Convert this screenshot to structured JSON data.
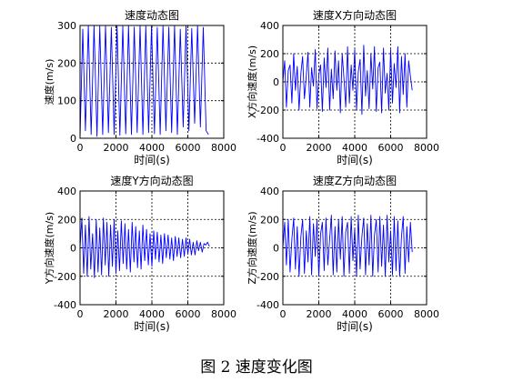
{
  "caption": "图 2  速度变化图",
  "chart_data": [
    {
      "type": "line",
      "title": "速度动态图",
      "xlabel": "时间(s)",
      "ylabel": "速度(m/s)",
      "xlim": [
        0,
        8000
      ],
      "ylim": [
        0,
        300
      ],
      "xticks": [
        0,
        2000,
        4000,
        6000,
        8000
      ],
      "yticks": [
        0,
        100,
        200,
        300
      ],
      "grid": true,
      "line_color": "#0000ff",
      "series": [
        {
          "x": [
            0,
            150,
            300,
            460,
            620,
            780,
            940,
            1100,
            1260,
            1420,
            1580,
            1740,
            1900,
            2060,
            2220,
            2380,
            2540,
            2700,
            2860,
            3020,
            3180,
            3340,
            3500,
            3660,
            3820,
            3980,
            4140,
            4300,
            4460,
            4620,
            4780,
            4940,
            5100,
            5260,
            5420,
            5580,
            5740,
            5900,
            6060,
            6220,
            6380,
            6540,
            6700,
            6860,
            7020,
            7150
          ],
          "y": [
            0,
            290,
            20,
            300,
            10,
            300,
            5,
            298,
            10,
            300,
            15,
            295,
            10,
            300,
            8,
            298,
            12,
            300,
            10,
            296,
            15,
            300,
            10,
            298,
            15,
            300,
            12,
            295,
            10,
            300,
            20,
            296,
            15,
            300,
            10,
            290,
            30,
            300,
            20,
            292,
            40,
            300,
            30,
            295,
            20,
            10
          ]
        }
      ]
    },
    {
      "type": "line",
      "title": "速度X方向动态图",
      "xlabel": "时间(s)",
      "ylabel": "X方向速度(m/s)",
      "xlim": [
        0,
        8000
      ],
      "ylim": [
        -400,
        400
      ],
      "xticks": [
        0,
        2000,
        4000,
        6000,
        8000
      ],
      "yticks": [
        -400,
        -200,
        0,
        200,
        400
      ],
      "grid": true,
      "line_color": "#0000ff",
      "series": [
        {
          "x": [
            0,
            100,
            200,
            300,
            400,
            500,
            600,
            700,
            800,
            900,
            1000,
            1100,
            1200,
            1300,
            1400,
            1500,
            1600,
            1700,
            1800,
            1900,
            2000,
            2100,
            2200,
            2300,
            2400,
            2500,
            2600,
            2700,
            2800,
            2900,
            3000,
            3100,
            3200,
            3300,
            3400,
            3500,
            3600,
            3700,
            3800,
            3900,
            4000,
            4100,
            4200,
            4300,
            4400,
            4500,
            4600,
            4700,
            4800,
            4900,
            5000,
            5100,
            5200,
            5300,
            5400,
            5500,
            5600,
            5700,
            5800,
            5900,
            6000,
            6100,
            6200,
            6300,
            6400,
            6500,
            6600,
            6700,
            6800,
            6900,
            7000,
            7100,
            7200
          ],
          "y": [
            0,
            150,
            -180,
            80,
            120,
            -150,
            200,
            -60,
            110,
            -200,
            60,
            180,
            -120,
            40,
            210,
            -180,
            100,
            -30,
            230,
            -190,
            50,
            120,
            -210,
            170,
            -40,
            240,
            -200,
            90,
            -120,
            220,
            -60,
            150,
            -220,
            200,
            30,
            -180,
            250,
            -150,
            120,
            -60,
            230,
            -200,
            70,
            160,
            -230,
            260,
            -100,
            80,
            -190,
            200,
            -50,
            250,
            -210,
            100,
            140,
            -220,
            240,
            -80,
            60,
            -200,
            230,
            -150,
            130,
            -40,
            250,
            -220,
            180,
            -90,
            200,
            -180,
            150,
            40,
            -60
          ]
        }
      ]
    },
    {
      "type": "line",
      "title": "速度Y方向动态图",
      "xlabel": "时间(s)",
      "ylabel": "Y方向速度(m/s)",
      "xlim": [
        0,
        8000
      ],
      "ylim": [
        -400,
        400
      ],
      "xticks": [
        0,
        2000,
        4000,
        6000,
        8000
      ],
      "yticks": [
        -400,
        -200,
        0,
        200,
        400
      ],
      "grid": true,
      "line_color": "#0000ff",
      "series": [
        {
          "x": [
            0,
            100,
            200,
            300,
            400,
            500,
            600,
            700,
            800,
            900,
            1000,
            1100,
            1200,
            1300,
            1400,
            1500,
            1600,
            1700,
            1800,
            1900,
            2000,
            2100,
            2200,
            2300,
            2400,
            2500,
            2600,
            2700,
            2800,
            2900,
            3000,
            3100,
            3200,
            3300,
            3400,
            3500,
            3600,
            3700,
            3800,
            3900,
            4000,
            4100,
            4200,
            4300,
            4400,
            4500,
            4600,
            4700,
            4800,
            4900,
            5000,
            5100,
            5200,
            5300,
            5400,
            5500,
            5600,
            5700,
            5800,
            5900,
            6000,
            6100,
            6200,
            6300,
            6400,
            6500,
            6600,
            6700,
            6800,
            6900,
            7000,
            7100,
            7200
          ],
          "y": [
            0,
            210,
            -180,
            160,
            -200,
            220,
            -150,
            100,
            -210,
            200,
            -170,
            140,
            -190,
            210,
            -120,
            180,
            -200,
            160,
            -130,
            200,
            -180,
            120,
            -160,
            190,
            -110,
            170,
            -150,
            130,
            -170,
            180,
            -100,
            150,
            -140,
            120,
            -150,
            160,
            -90,
            130,
            -120,
            100,
            -130,
            120,
            -80,
            110,
            -100,
            90,
            -110,
            100,
            -70,
            90,
            -80,
            70,
            -90,
            80,
            -60,
            70,
            -70,
            60,
            -60,
            70,
            -40,
            60,
            -50,
            40,
            -50,
            50,
            -20,
            40,
            -30,
            30,
            20,
            40,
            10
          ]
        }
      ]
    },
    {
      "type": "line",
      "title": "速度Z方向动态图",
      "xlabel": "时间(s)",
      "ylabel": "Z方向速度(m/s)",
      "xlim": [
        0,
        8000
      ],
      "ylim": [
        -400,
        400
      ],
      "xticks": [
        0,
        2000,
        4000,
        6000,
        8000
      ],
      "yticks": [
        -400,
        -200,
        0,
        200,
        400
      ],
      "grid": true,
      "line_color": "#0000ff",
      "series": [
        {
          "x": [
            0,
            100,
            200,
            300,
            400,
            500,
            600,
            700,
            800,
            900,
            1000,
            1100,
            1200,
            1300,
            1400,
            1500,
            1600,
            1700,
            1800,
            1900,
            2000,
            2100,
            2200,
            2300,
            2400,
            2500,
            2600,
            2700,
            2800,
            2900,
            3000,
            3100,
            3200,
            3300,
            3400,
            3500,
            3600,
            3700,
            3800,
            3900,
            4000,
            4100,
            4200,
            4300,
            4400,
            4500,
            4600,
            4700,
            4800,
            4900,
            5000,
            5100,
            5200,
            5300,
            5400,
            5500,
            5600,
            5700,
            5800,
            5900,
            6000,
            6100,
            6200,
            6300,
            6400,
            6500,
            6600,
            6700,
            6800,
            6900,
            7000,
            7100,
            7200
          ],
          "y": [
            0,
            180,
            -120,
            200,
            -170,
            60,
            210,
            -150,
            150,
            -200,
            80,
            200,
            -180,
            120,
            -100,
            220,
            -190,
            170,
            -60,
            200,
            -200,
            100,
            180,
            -160,
            210,
            -120,
            60,
            230,
            -190,
            150,
            -170,
            200,
            -80,
            220,
            -200,
            110,
            180,
            -180,
            220,
            -90,
            140,
            -200,
            230,
            -150,
            80,
            210,
            -190,
            170,
            -120,
            230,
            -200,
            90,
            200,
            -170,
            220,
            -130,
            160,
            -200,
            230,
            -100,
            120,
            -190,
            220,
            -160,
            190,
            -200,
            80,
            220,
            -180,
            150,
            -100,
            180,
            -30
          ]
        }
      ]
    }
  ]
}
